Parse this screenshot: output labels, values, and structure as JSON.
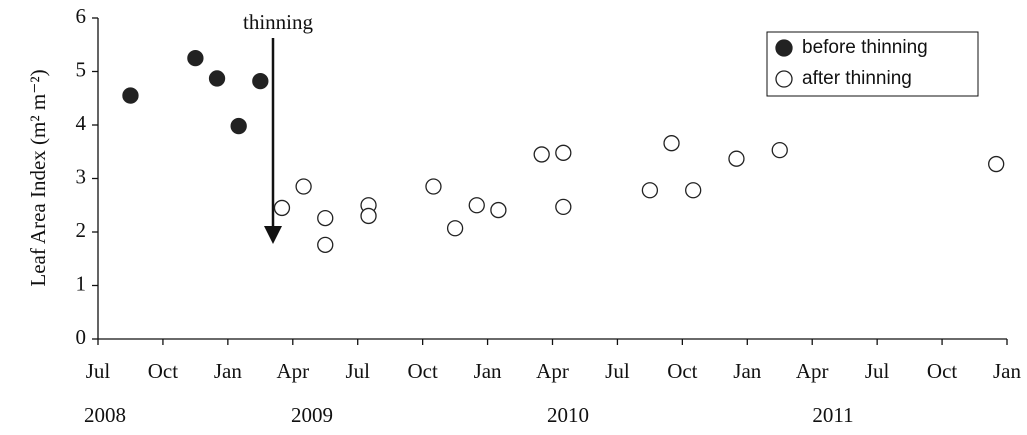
{
  "chart_data": {
    "type": "scatter",
    "y_label": "Leaf Area Index (m² m⁻²)",
    "annotation": "thinning",
    "year_labels": [
      "2008",
      "2009",
      "2010",
      "2011"
    ],
    "xlim": [
      "2008-07",
      "2012-01"
    ],
    "xticks": [
      {
        "value": "2008-07",
        "label": "Jul"
      },
      {
        "value": "2008-10",
        "label": "Oct"
      },
      {
        "value": "2009-01",
        "label": "Jan"
      },
      {
        "value": "2009-04",
        "label": "Apr"
      },
      {
        "value": "2009-07",
        "label": "Jul"
      },
      {
        "value": "2009-10",
        "label": "Oct"
      },
      {
        "value": "2010-01",
        "label": "Jan"
      },
      {
        "value": "2010-04",
        "label": "Apr"
      },
      {
        "value": "2010-07",
        "label": "Jul"
      },
      {
        "value": "2010-10",
        "label": "Oct"
      },
      {
        "value": "2011-01",
        "label": "Jan"
      },
      {
        "value": "2011-04",
        "label": "Apr"
      },
      {
        "value": "2011-07",
        "label": "Jul"
      },
      {
        "value": "2011-10",
        "label": "Oct"
      },
      {
        "value": "2012-01",
        "label": "Jan"
      }
    ],
    "ylim": [
      0,
      6
    ],
    "yticks": [
      0,
      1,
      2,
      3,
      4,
      5,
      6
    ],
    "legend": "top-right",
    "series": [
      {
        "name": "before thinning",
        "color": "#222222",
        "filled": true,
        "x": [
          "2008-08",
          "2008-11",
          "2008-12",
          "2009-01",
          "2009-02"
        ],
        "values": [
          4.55,
          5.25,
          4.87,
          3.98,
          4.82
        ]
      },
      {
        "name": "after thinning",
        "color": "#222222",
        "filled": false,
        "x": [
          "2009-03",
          "2009-04",
          "2009-05",
          "2009-05",
          "2009-07",
          "2009-07",
          "2009-10",
          "2009-11",
          "2009-12",
          "2010-01",
          "2010-03",
          "2010-04",
          "2010-04",
          "2010-08",
          "2010-09",
          "2010-10",
          "2010-12",
          "2011-02",
          "2011-12"
        ],
        "values": [
          2.45,
          2.85,
          2.26,
          1.76,
          2.5,
          2.3,
          2.85,
          2.07,
          2.5,
          2.41,
          3.45,
          3.48,
          2.47,
          2.78,
          3.66,
          2.78,
          3.37,
          3.53,
          3.27
        ]
      }
    ]
  }
}
